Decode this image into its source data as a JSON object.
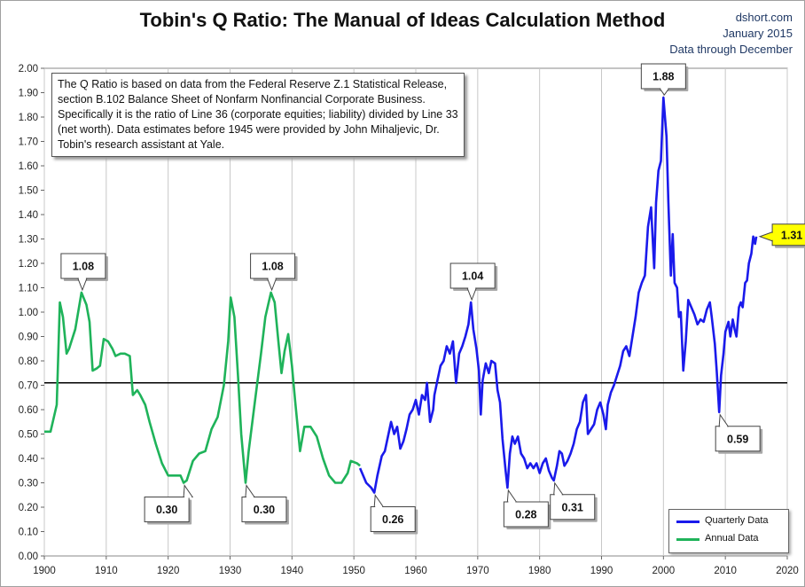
{
  "title": "Tobin's Q Ratio: The Manual of Ideas Calculation Method",
  "source": {
    "site": "dshort.com",
    "date": "January 2015",
    "coverage": "Data through December"
  },
  "note": "The Q Ratio is based on data from the Federal Reserve Z.1 Statistical Release, section B.102 Balance Sheet of Nonfarm Nonfinancial Corporate Business. Specifically it is the ratio of Line 36 (corporate equities; liability) divided by Line 33 (net worth).  Data estimates before 1945 were provided by John Mihaljevic, Dr. Tobin's research assistant at Yale.",
  "colors": {
    "quarterly": "#1a1aeb",
    "annual": "#1fb35a",
    "mean_line": "#000000",
    "latest_callout": "#ffff00",
    "grid": "#c8c8c8"
  },
  "chart_data": {
    "type": "line",
    "title": "Tobin's Q Ratio: The Manual of Ideas Calculation Method",
    "xlabel": "",
    "ylabel": "",
    "xlim": [
      1900,
      2020
    ],
    "ylim": [
      0,
      2
    ],
    "x_ticks": [
      "1900",
      "1910",
      "1920",
      "1930",
      "1940",
      "1950",
      "1960",
      "1970",
      "1980",
      "1990",
      "2000",
      "2010",
      "2020"
    ],
    "y_ticks": [
      "0.00",
      "0.10",
      "0.20",
      "0.30",
      "0.40",
      "0.50",
      "0.60",
      "0.70",
      "0.80",
      "0.90",
      "1.00",
      "1.10",
      "1.20",
      "1.30",
      "1.40",
      "1.50",
      "1.60",
      "1.70",
      "1.80",
      "1.90",
      "2.00"
    ],
    "grid": "vertical",
    "legend": {
      "position": "bottom-right",
      "entries": [
        "Quarterly Data",
        "Annual Data"
      ]
    },
    "reference_line": {
      "y": 0.71
    },
    "series": [
      {
        "name": "Annual Data",
        "points": [
          [
            1900,
            0.51
          ],
          [
            1901,
            0.51
          ],
          [
            1902,
            0.62
          ],
          [
            1902.5,
            1.04
          ],
          [
            1903,
            0.98
          ],
          [
            1903.6,
            0.83
          ],
          [
            1904,
            0.85
          ],
          [
            1905,
            0.93
          ],
          [
            1906,
            1.08
          ],
          [
            1906.8,
            1.03
          ],
          [
            1907.3,
            0.96
          ],
          [
            1907.8,
            0.76
          ],
          [
            1908.5,
            0.77
          ],
          [
            1909,
            0.78
          ],
          [
            1909.6,
            0.89
          ],
          [
            1910.3,
            0.88
          ],
          [
            1911,
            0.85
          ],
          [
            1911.5,
            0.82
          ],
          [
            1912.3,
            0.83
          ],
          [
            1913,
            0.83
          ],
          [
            1913.8,
            0.82
          ],
          [
            1914.3,
            0.66
          ],
          [
            1915,
            0.68
          ],
          [
            1915.5,
            0.66
          ],
          [
            1916.3,
            0.62
          ],
          [
            1917,
            0.55
          ],
          [
            1918,
            0.46
          ],
          [
            1919,
            0.38
          ],
          [
            1920,
            0.33
          ],
          [
            1921,
            0.33
          ],
          [
            1922,
            0.33
          ],
          [
            1922.5,
            0.3
          ],
          [
            1923,
            0.31
          ],
          [
            1924,
            0.39
          ],
          [
            1925,
            0.42
          ],
          [
            1926,
            0.43
          ],
          [
            1927,
            0.52
          ],
          [
            1928,
            0.57
          ],
          [
            1929,
            0.7
          ],
          [
            1929.7,
            0.88
          ],
          [
            1930.1,
            1.06
          ],
          [
            1930.7,
            0.98
          ],
          [
            1931.3,
            0.73
          ],
          [
            1931.8,
            0.5
          ],
          [
            1932.5,
            0.3
          ],
          [
            1933,
            0.43
          ],
          [
            1934,
            0.63
          ],
          [
            1935,
            0.83
          ],
          [
            1935.7,
            0.98
          ],
          [
            1936.6,
            1.08
          ],
          [
            1937.2,
            1.04
          ],
          [
            1937.8,
            0.88
          ],
          [
            1938.3,
            0.75
          ],
          [
            1938.8,
            0.84
          ],
          [
            1939.4,
            0.91
          ],
          [
            1940,
            0.78
          ],
          [
            1940.5,
            0.64
          ],
          [
            1941.3,
            0.43
          ],
          [
            1942,
            0.53
          ],
          [
            1943,
            0.53
          ],
          [
            1944,
            0.49
          ],
          [
            1945,
            0.4
          ],
          [
            1946,
            0.33
          ],
          [
            1947,
            0.3
          ],
          [
            1948,
            0.3
          ],
          [
            1949,
            0.34
          ],
          [
            1949.5,
            0.39
          ],
          [
            1950.5,
            0.38
          ],
          [
            1951,
            0.37
          ]
        ]
      },
      {
        "name": "Quarterly Data",
        "points": [
          [
            1951,
            0.36
          ],
          [
            1952,
            0.3
          ],
          [
            1952.8,
            0.28
          ],
          [
            1953.3,
            0.26
          ],
          [
            1953.8,
            0.33
          ],
          [
            1954.5,
            0.41
          ],
          [
            1955,
            0.43
          ],
          [
            1955.5,
            0.49
          ],
          [
            1956,
            0.55
          ],
          [
            1956.5,
            0.5
          ],
          [
            1957,
            0.53
          ],
          [
            1957.5,
            0.44
          ],
          [
            1958,
            0.47
          ],
          [
            1958.5,
            0.52
          ],
          [
            1959,
            0.58
          ],
          [
            1959.5,
            0.6
          ],
          [
            1960,
            0.64
          ],
          [
            1960.5,
            0.58
          ],
          [
            1961,
            0.66
          ],
          [
            1961.5,
            0.64
          ],
          [
            1961.8,
            0.71
          ],
          [
            1962.3,
            0.55
          ],
          [
            1962.8,
            0.6
          ],
          [
            1963,
            0.66
          ],
          [
            1963.5,
            0.72
          ],
          [
            1964,
            0.78
          ],
          [
            1964.5,
            0.8
          ],
          [
            1965,
            0.86
          ],
          [
            1965.5,
            0.83
          ],
          [
            1966,
            0.88
          ],
          [
            1966.5,
            0.71
          ],
          [
            1967,
            0.83
          ],
          [
            1967.5,
            0.86
          ],
          [
            1968,
            0.9
          ],
          [
            1968.5,
            0.95
          ],
          [
            1968.9,
            1.04
          ],
          [
            1969.3,
            0.93
          ],
          [
            1969.8,
            0.85
          ],
          [
            1970.2,
            0.76
          ],
          [
            1970.5,
            0.58
          ],
          [
            1970.8,
            0.72
          ],
          [
            1971.3,
            0.79
          ],
          [
            1971.8,
            0.75
          ],
          [
            1972.2,
            0.8
          ],
          [
            1972.8,
            0.79
          ],
          [
            1973.2,
            0.68
          ],
          [
            1973.6,
            0.63
          ],
          [
            1974,
            0.48
          ],
          [
            1974.5,
            0.35
          ],
          [
            1974.8,
            0.28
          ],
          [
            1975.2,
            0.42
          ],
          [
            1975.6,
            0.49
          ],
          [
            1976,
            0.46
          ],
          [
            1976.5,
            0.49
          ],
          [
            1977,
            0.42
          ],
          [
            1977.5,
            0.4
          ],
          [
            1978,
            0.36
          ],
          [
            1978.5,
            0.38
          ],
          [
            1979,
            0.36
          ],
          [
            1979.5,
            0.38
          ],
          [
            1980,
            0.34
          ],
          [
            1980.5,
            0.38
          ],
          [
            1981,
            0.4
          ],
          [
            1981.5,
            0.35
          ],
          [
            1982,
            0.32
          ],
          [
            1982.3,
            0.31
          ],
          [
            1982.8,
            0.37
          ],
          [
            1983.2,
            0.43
          ],
          [
            1983.6,
            0.42
          ],
          [
            1984,
            0.37
          ],
          [
            1984.5,
            0.39
          ],
          [
            1985,
            0.42
          ],
          [
            1985.5,
            0.46
          ],
          [
            1986,
            0.52
          ],
          [
            1986.5,
            0.55
          ],
          [
            1987,
            0.63
          ],
          [
            1987.5,
            0.66
          ],
          [
            1987.8,
            0.5
          ],
          [
            1988.3,
            0.52
          ],
          [
            1988.8,
            0.54
          ],
          [
            1989.3,
            0.6
          ],
          [
            1989.8,
            0.63
          ],
          [
            1990.3,
            0.58
          ],
          [
            1990.7,
            0.52
          ],
          [
            1991,
            0.62
          ],
          [
            1991.5,
            0.67
          ],
          [
            1992,
            0.7
          ],
          [
            1992.5,
            0.74
          ],
          [
            1993,
            0.78
          ],
          [
            1993.5,
            0.84
          ],
          [
            1994,
            0.86
          ],
          [
            1994.5,
            0.82
          ],
          [
            1995,
            0.9
          ],
          [
            1995.5,
            0.98
          ],
          [
            1996,
            1.08
          ],
          [
            1996.5,
            1.12
          ],
          [
            1997,
            1.15
          ],
          [
            1997.5,
            1.35
          ],
          [
            1998,
            1.43
          ],
          [
            1998.5,
            1.18
          ],
          [
            1998.8,
            1.45
          ],
          [
            1999.2,
            1.58
          ],
          [
            1999.6,
            1.62
          ],
          [
            2000,
            1.88
          ],
          [
            2000.5,
            1.72
          ],
          [
            2000.8,
            1.45
          ],
          [
            2001.2,
            1.15
          ],
          [
            2001.5,
            1.32
          ],
          [
            2001.8,
            1.12
          ],
          [
            2002.2,
            1.1
          ],
          [
            2002.5,
            0.98
          ],
          [
            2002.8,
            1.0
          ],
          [
            2003.2,
            0.76
          ],
          [
            2003.6,
            0.88
          ],
          [
            2004,
            1.05
          ],
          [
            2004.5,
            1.02
          ],
          [
            2005,
            0.99
          ],
          [
            2005.5,
            0.95
          ],
          [
            2006,
            0.97
          ],
          [
            2006.5,
            0.96
          ],
          [
            2007,
            1.01
          ],
          [
            2007.5,
            1.04
          ],
          [
            2007.8,
            0.98
          ],
          [
            2008.3,
            0.87
          ],
          [
            2008.6,
            0.76
          ],
          [
            2009,
            0.59
          ],
          [
            2009.3,
            0.74
          ],
          [
            2009.7,
            0.83
          ],
          [
            2010,
            0.92
          ],
          [
            2010.5,
            0.96
          ],
          [
            2010.8,
            0.9
          ],
          [
            2011.2,
            0.97
          ],
          [
            2011.5,
            0.93
          ],
          [
            2011.8,
            0.9
          ],
          [
            2012.2,
            1.02
          ],
          [
            2012.5,
            1.04
          ],
          [
            2012.8,
            1.02
          ],
          [
            2013.2,
            1.12
          ],
          [
            2013.5,
            1.13
          ],
          [
            2013.8,
            1.2
          ],
          [
            2014.2,
            1.24
          ],
          [
            2014.5,
            1.31
          ],
          [
            2014.8,
            1.28
          ],
          [
            2015,
            1.31
          ]
        ]
      }
    ],
    "callouts": [
      {
        "text": "1.08",
        "x": 1906,
        "y": 1.08,
        "placement": "above"
      },
      {
        "text": "1.08",
        "x": 1936.6,
        "y": 1.08,
        "placement": "above"
      },
      {
        "text": "1.04",
        "x": 1968.9,
        "y": 1.04,
        "placement": "above"
      },
      {
        "text": "1.88",
        "x": 2000,
        "y": 1.88,
        "placement": "above"
      },
      {
        "text": "1.31",
        "x": 2015,
        "y": 1.31,
        "placement": "right",
        "highlight": true
      },
      {
        "text": "0.30",
        "x": 1922.5,
        "y": 0.3,
        "placement": "below"
      },
      {
        "text": "0.30",
        "x": 1932.5,
        "y": 0.3,
        "placement": "below"
      },
      {
        "text": "0.26",
        "x": 1953.3,
        "y": 0.26,
        "placement": "below"
      },
      {
        "text": "0.28",
        "x": 1974.8,
        "y": 0.28,
        "placement": "below"
      },
      {
        "text": "0.31",
        "x": 1982.3,
        "y": 0.31,
        "placement": "below"
      },
      {
        "text": "0.59",
        "x": 2009,
        "y": 0.59,
        "placement": "below"
      }
    ]
  }
}
